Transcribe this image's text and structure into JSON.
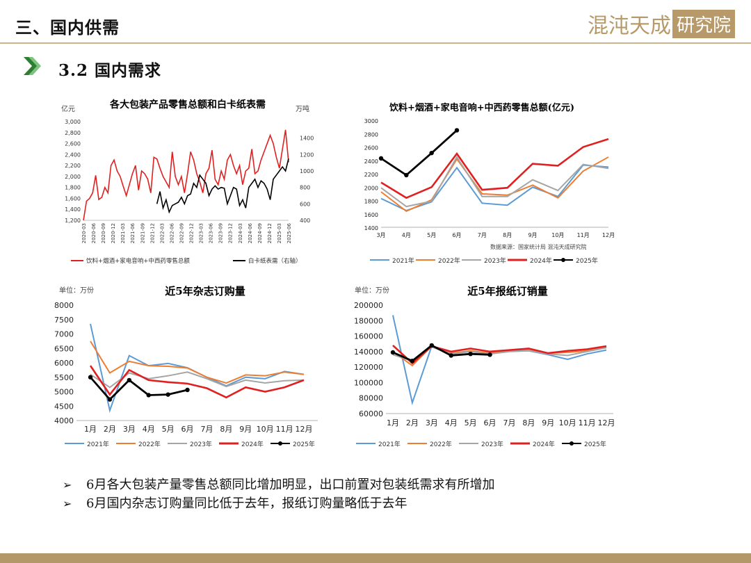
{
  "header": {
    "title": "三、国内供需",
    "logo_text": "混沌天成",
    "logo_box": "研究院"
  },
  "section": {
    "title": "3.2 国内需求",
    "arrow_icon": "double-chevron-right",
    "arrow_color": "#2e7d32"
  },
  "colors": {
    "y2021": "#5b9bd5",
    "y2022": "#ed7d31",
    "y2023": "#a5a5a5",
    "y2024": "#e02020",
    "y2025": "#000000",
    "accent": "#b3986a"
  },
  "chart_data": [
    {
      "type": "line",
      "title": "各大包装产品零售总额和白卡纸表需",
      "ylabel": "亿元",
      "y2label": "万吨",
      "yticks": [
        "1,200",
        "1,400",
        "1,600",
        "1,800",
        "2,000",
        "2,200",
        "2,400",
        "2,600",
        "2,800",
        "3,000"
      ],
      "y2ticks": [
        "400",
        "600",
        "800",
        "1000",
        "1200",
        "1400"
      ],
      "ylim": [
        1200,
        3000
      ],
      "y2lim": [
        400,
        1600
      ],
      "xticks": [
        "2020-03",
        "2020-06",
        "2020-09",
        "2020-12",
        "2021-03",
        "2021-06",
        "2021-09",
        "2021-12",
        "2022-03",
        "2022-06",
        "2022-09",
        "2022-12",
        "2023-03",
        "2023-06",
        "2023-09",
        "2023-12",
        "2024-03",
        "2024-06",
        "2024-09",
        "2024-12",
        "2025-03",
        "2025-06"
      ],
      "series": [
        {
          "name": "饮料+烟酒+家电音响+中西药零售总额",
          "axis": "left",
          "values": [
            1200,
            1550,
            1600,
            1700,
            2020,
            1580,
            1620,
            1800,
            1700,
            2200,
            2300,
            2100,
            2000,
            1820,
            1650,
            1850,
            2050,
            2200,
            1750,
            2100,
            2050,
            1950,
            1700,
            2350,
            2320,
            2150,
            2000,
            1900,
            1800,
            2450,
            2000,
            1850,
            2000,
            1700,
            2050,
            2450,
            2300,
            2050,
            1900,
            1700,
            2050,
            2150,
            2480,
            1950,
            1850,
            2100,
            1950,
            2300,
            2400,
            2200,
            2050,
            2200,
            1850,
            2100,
            2150,
            2500,
            2050,
            2100,
            2300,
            2450,
            2600,
            2750,
            2600,
            2350,
            2150,
            2500,
            2850,
            2260
          ]
        },
        {
          "name": "白卡纸表需（右轴）",
          "axis": "right",
          "startIndex": 24,
          "values": [
            600,
            750,
            550,
            650,
            500,
            580,
            600,
            620,
            680,
            600,
            700,
            720,
            850,
            800,
            950,
            900,
            850,
            700,
            780,
            820,
            780,
            800,
            790,
            600,
            700,
            800,
            780,
            580,
            650,
            550,
            800,
            850,
            900,
            800,
            880,
            850,
            780,
            650,
            900,
            950,
            1000,
            1050,
            1000,
            1150,
            1050,
            1100,
            1150,
            1200,
            1100,
            1050,
            1000,
            1150,
            1100,
            1100,
            1200,
            1150,
            1400,
            1380,
            1300,
            1150,
            1200,
            1100,
            1150,
            1200,
            1150,
            1150,
            1100,
            1080
          ]
        }
      ]
    },
    {
      "type": "line",
      "title": "饮料+烟酒+家电音响+中西药零售总额(亿元)",
      "yticks": [
        "1400",
        "1600",
        "1800",
        "2000",
        "2200",
        "2400",
        "2600",
        "2800",
        "3000"
      ],
      "ylim": [
        1400,
        3000
      ],
      "xticks": [
        "3月",
        "4月",
        "5月",
        "6月",
        "7月",
        "8月",
        "9月",
        "10月",
        "11月",
        "12月"
      ],
      "source": "数据来源：国家统计局  混沌天成研究院",
      "series": [
        {
          "name": "2021年",
          "color_key": "y2021",
          "values": [
            1830,
            1650,
            1780,
            2290,
            1760,
            1730,
            2000,
            1860,
            2330,
            2300
          ]
        },
        {
          "name": "2022年",
          "color_key": "y2022",
          "values": [
            1930,
            1640,
            1810,
            2420,
            1900,
            1880,
            2030,
            1840,
            2240,
            2450
          ]
        },
        {
          "name": "2023年",
          "color_key": "y2023",
          "values": [
            1990,
            1710,
            1790,
            2450,
            1860,
            1860,
            2110,
            1950,
            2340,
            2280
          ]
        },
        {
          "name": "2024年",
          "color_key": "y2024",
          "values": [
            2070,
            1840,
            2000,
            2500,
            1960,
            1990,
            2350,
            2320,
            2600,
            2720
          ]
        },
        {
          "name": "2025年",
          "color_key": "y2025",
          "values": [
            2430,
            2180,
            2510,
            2850
          ],
          "markers": true
        }
      ]
    },
    {
      "type": "line",
      "title": "近5年杂志订购量",
      "unit": "单位：万份",
      "yticks": [
        "4000",
        "4500",
        "5000",
        "5500",
        "6000",
        "6500",
        "7000",
        "7500",
        "8000"
      ],
      "ylim": [
        4000,
        8000
      ],
      "xticks": [
        "1月",
        "2月",
        "3月",
        "4月",
        "5月",
        "6月",
        "7月",
        "8月",
        "9月",
        "10月",
        "11月",
        "12月"
      ],
      "series": [
        {
          "name": "2021年",
          "color_key": "y2021",
          "values": [
            7350,
            4350,
            6250,
            5900,
            5980,
            5830,
            5500,
            5200,
            5500,
            5450,
            5700,
            5600
          ]
        },
        {
          "name": "2022年",
          "color_key": "y2022",
          "values": [
            6750,
            5650,
            6050,
            5900,
            5880,
            5820,
            5500,
            5300,
            5580,
            5550,
            5680,
            5600
          ]
        },
        {
          "name": "2023年",
          "color_key": "y2023",
          "values": [
            5600,
            5150,
            5650,
            5450,
            5550,
            5680,
            5450,
            5180,
            5400,
            5300,
            5380,
            5400
          ]
        },
        {
          "name": "2024年",
          "color_key": "y2024",
          "values": [
            5900,
            4900,
            5750,
            5400,
            5330,
            5280,
            5120,
            4800,
            5150,
            5000,
            5150,
            5400
          ]
        },
        {
          "name": "2025年",
          "color_key": "y2025",
          "values": [
            5500,
            4730,
            5400,
            4880,
            4900,
            5060
          ],
          "markers": true
        }
      ]
    },
    {
      "type": "line",
      "title": "近5年报纸订销量",
      "unit": "单位：万份",
      "yticks": [
        "60000",
        "80000",
        "100000",
        "120000",
        "140000",
        "160000",
        "180000",
        "200000"
      ],
      "ylim": [
        60000,
        200000
      ],
      "xticks": [
        "1月",
        "2月",
        "3月",
        "4月",
        "5月",
        "6月",
        "7月",
        "8月",
        "9月",
        "10月",
        "11月",
        "12月"
      ],
      "series": [
        {
          "name": "2021年",
          "color_key": "y2021",
          "values": [
            187000,
            74000,
            147000,
            137000,
            140000,
            137000,
            141000,
            141000,
            136000,
            130000,
            137000,
            142000
          ]
        },
        {
          "name": "2022年",
          "color_key": "y2022",
          "values": [
            140000,
            122000,
            147000,
            138000,
            141000,
            138000,
            142000,
            143000,
            138000,
            139000,
            141000,
            145000
          ]
        },
        {
          "name": "2023年",
          "color_key": "y2023",
          "values": [
            136000,
            128000,
            146000,
            137000,
            140000,
            137000,
            140000,
            141000,
            137000,
            135000,
            140000,
            145000
          ]
        },
        {
          "name": "2024年",
          "color_key": "y2024",
          "values": [
            148000,
            125000,
            147000,
            140000,
            144000,
            140000,
            142000,
            144000,
            138000,
            141000,
            143000,
            147000
          ]
        },
        {
          "name": "2025年",
          "color_key": "y2025",
          "values": [
            139000,
            128000,
            148000,
            135000,
            137000,
            136000
          ],
          "markers": true
        }
      ]
    }
  ],
  "bullets": [
    "6月各大包装产量零售总额同比增加明显，出口前置对包装纸需求有所增加",
    "6月国内杂志订购量同比低于去年，报纸订购量略低于去年"
  ],
  "bullet_mark": "➢"
}
